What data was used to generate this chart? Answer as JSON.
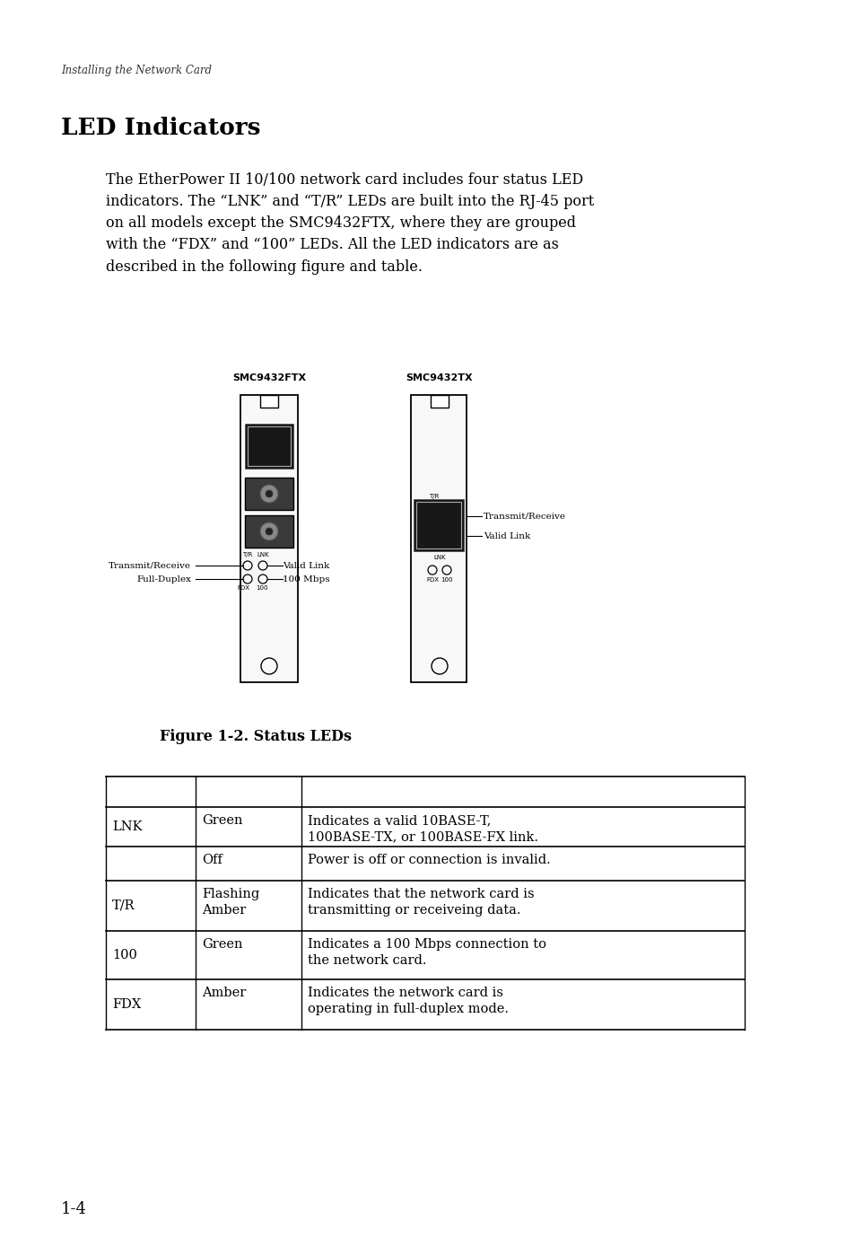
{
  "header_text": "Installing the Network Card",
  "title": "LED Indicators",
  "body_text": "The EtherPower II 10/100 network card includes four status LED\nindicators. The “LNK” and “T/R” LEDs are built into the RJ-45 port\non all models except the SMC9432FTX, where they are grouped\nwith the “FDX” and “100” LEDs. All the LED indicators are as\ndescribed in the following figure and table.",
  "figure_caption": "Figure 1-2. Status LEDs",
  "page_number": "1-4",
  "label1": "SMC9432FTX",
  "label2": "SMC9432TX",
  "bg_color": "#ffffff",
  "text_color": "#000000",
  "table_data": [
    [
      "LNK",
      "Green",
      "Indicates a valid 10BASE-T,\n100BASE-TX, or 100BASE-FX link."
    ],
    [
      "",
      "Off",
      "Power is off or connection is invalid."
    ],
    [
      "T/R",
      "Flashing\nAmber",
      "Indicates that the network card is\ntransmitting or receiveing data."
    ],
    [
      "100",
      "Green",
      "Indicates a 100 Mbps connection to\nthe network card."
    ],
    [
      "FDX",
      "Amber",
      "Indicates the network card is\noperating in full-duplex mode."
    ]
  ]
}
